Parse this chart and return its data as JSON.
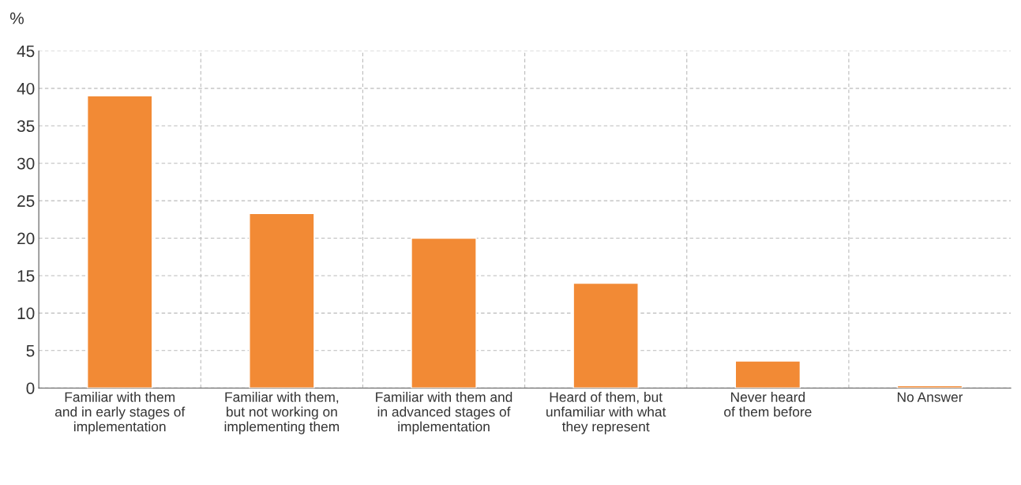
{
  "chart_data": {
    "type": "bar",
    "ylabel": "%",
    "categories": [
      "Familiar with them\nand in early stages of\nimplementation",
      "Familiar with them,\nbut not working on\nimplementing them",
      "Familiar with them and\nin advanced stages of\nimplementation",
      "Heard of them, but\nunfamiliar with what\nthey represent",
      "Never heard\nof them before",
      "No Answer"
    ],
    "values": [
      39.0,
      23.3,
      20.0,
      14.0,
      3.6,
      0.3
    ],
    "color": "#f28a35",
    "ylim": [
      0,
      45
    ],
    "yticks": [
      0,
      5,
      10,
      15,
      20,
      25,
      30,
      35,
      40,
      45
    ],
    "grid": true,
    "legend": false
  }
}
